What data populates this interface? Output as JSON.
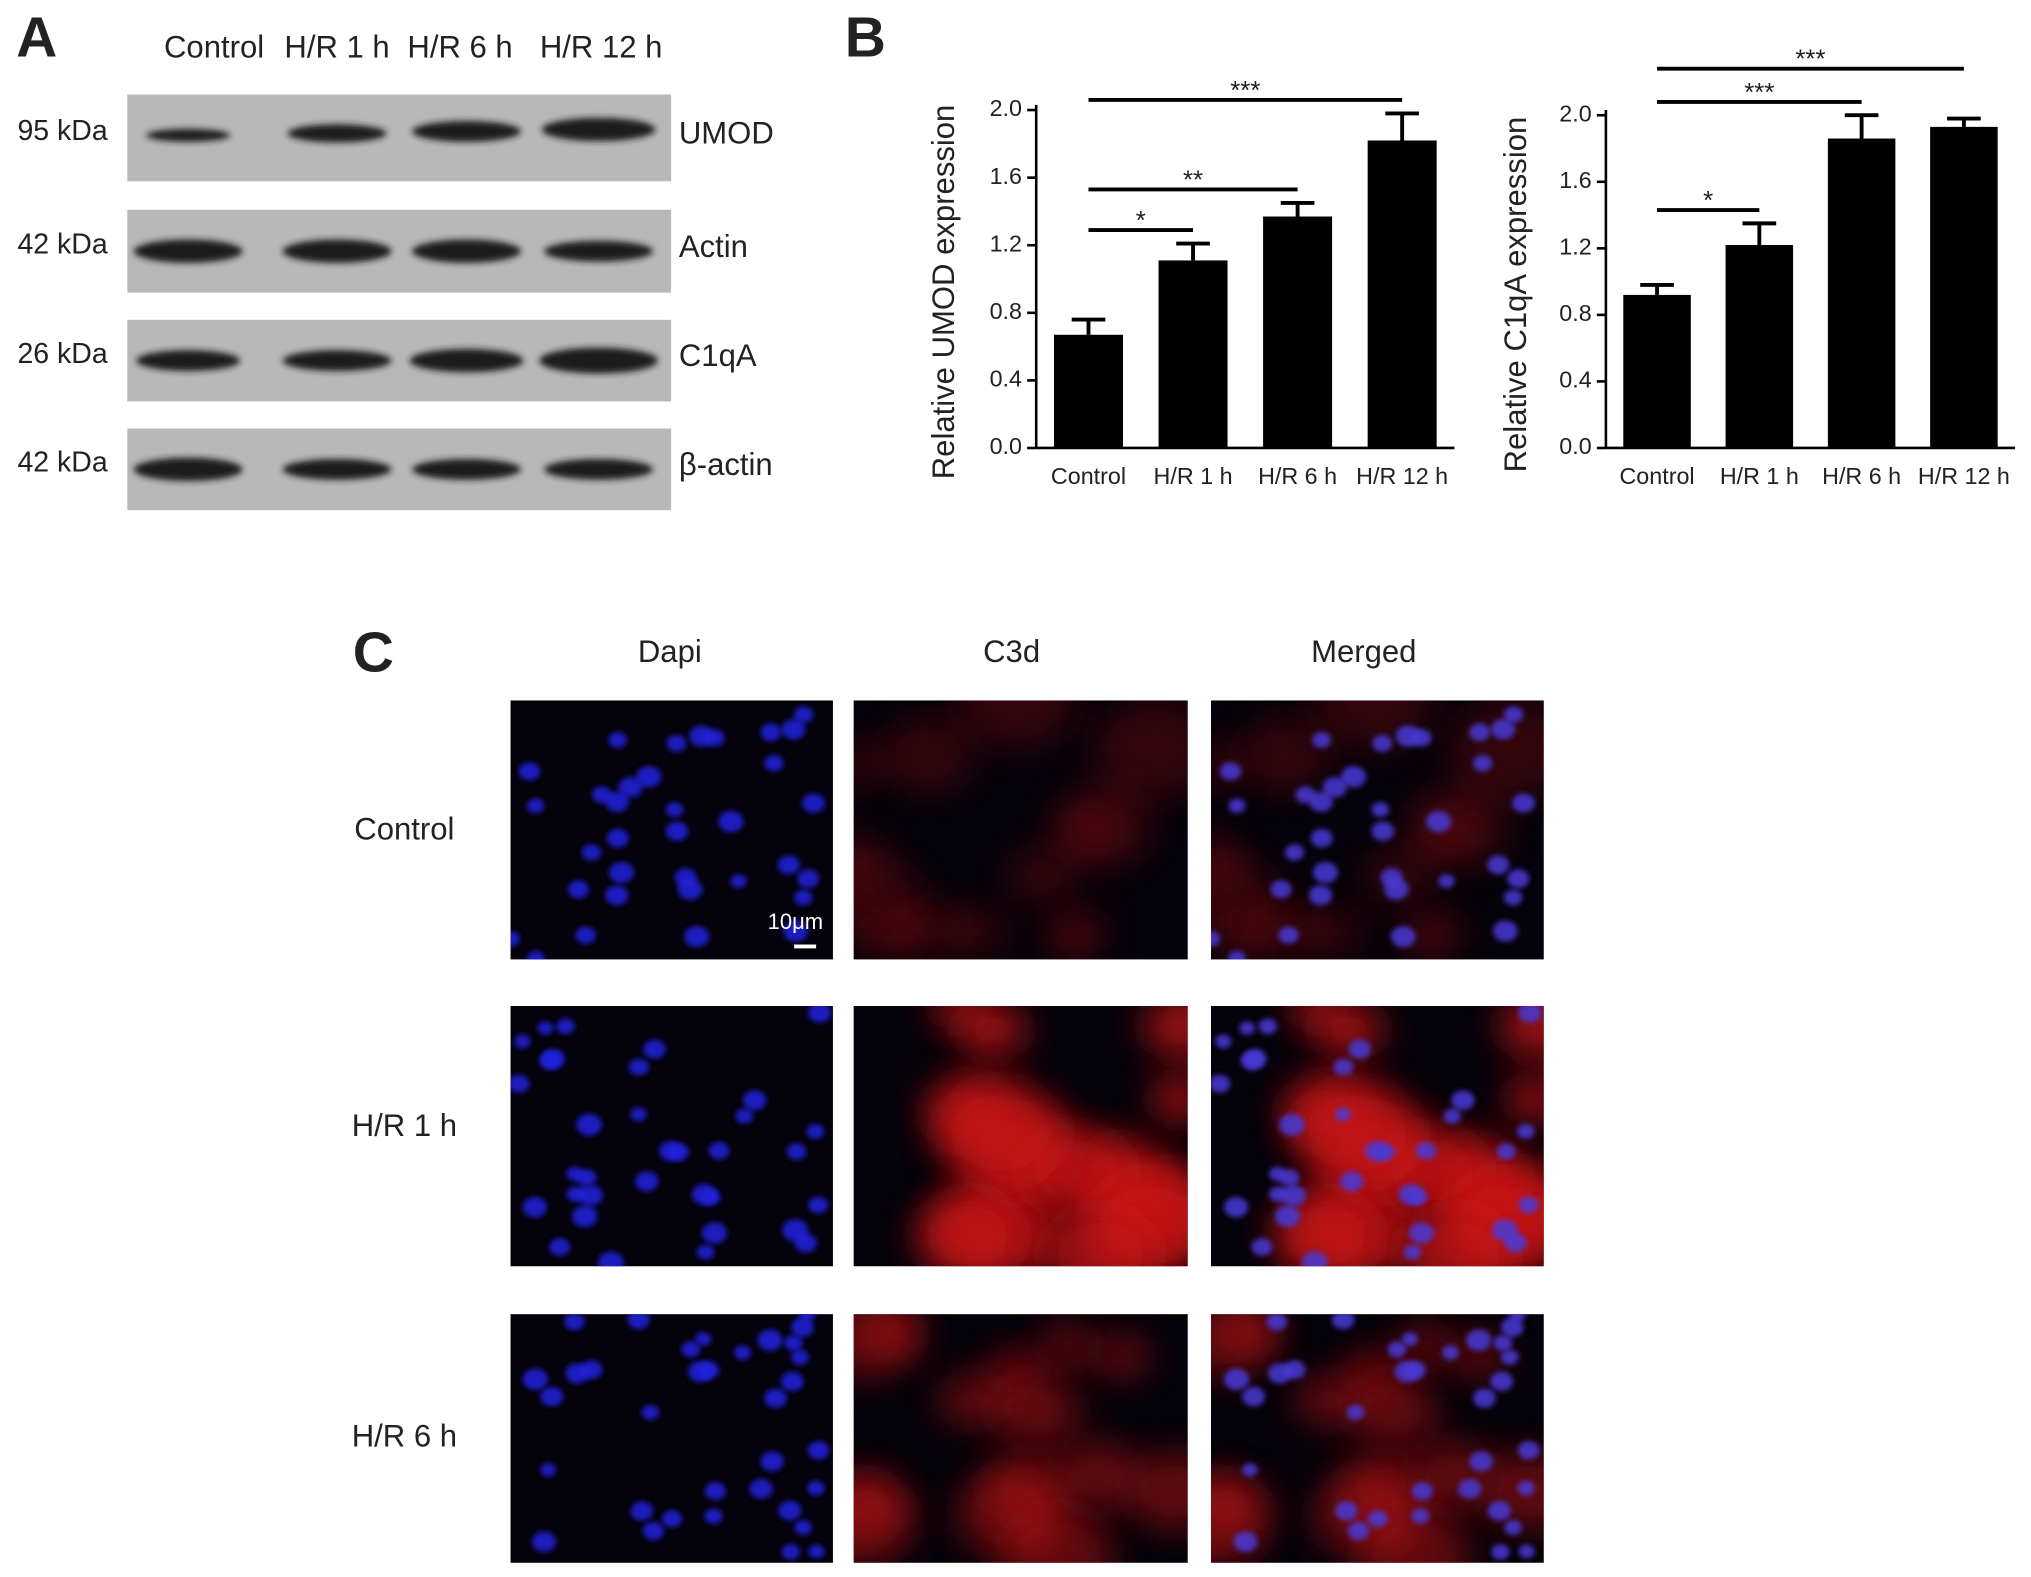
{
  "panel_labels": [
    "A",
    "B",
    "C"
  ],
  "blot": {
    "lanes": [
      "Control",
      "H/R 1 h",
      "H/R 6 h",
      "H/R 12 h"
    ],
    "rows": [
      {
        "mw": "95 kDa",
        "protein": "UMOD"
      },
      {
        "mw": "42 kDa",
        "protein": "Actin"
      },
      {
        "mw": "26 kDa",
        "protein": "C1qA"
      },
      {
        "mw": "42 kDa",
        "protein": "β-actin"
      }
    ]
  },
  "chart_data": [
    {
      "type": "bar",
      "ylabel": "Relative UMOD expression",
      "categories": [
        "Control",
        "H/R 1 h",
        "H/R 6 h",
        "H/R 12 h"
      ],
      "values": [
        0.67,
        1.11,
        1.37,
        1.82
      ],
      "errors": [
        0.09,
        0.1,
        0.08,
        0.16
      ],
      "color": "#000000",
      "ylim": [
        0,
        2
      ],
      "yticks": [
        {
          "value": 0,
          "label": "0.0"
        },
        0.4,
        0.8,
        1.2,
        1.6,
        {
          "value": 2,
          "label": "2.0"
        }
      ],
      "annotations": [
        {
          "text": "*",
          "from": "Control",
          "to": "H/R 1 h"
        },
        {
          "text": "**",
          "from": "Control",
          "to": "H/R 6 h"
        },
        {
          "text": "***",
          "from": "Control",
          "to": "H/R 12 h"
        }
      ]
    },
    {
      "type": "bar",
      "ylabel": "Relative C1qA  expression",
      "categories": [
        "Control",
        "H/R 1 h",
        "H/R 6 h",
        "H/R 12 h"
      ],
      "values": [
        0.92,
        1.22,
        1.86,
        1.93
      ],
      "errors": [
        0.06,
        0.13,
        0.14,
        0.05
      ],
      "color": "#000000",
      "ylim": [
        0,
        2
      ],
      "yticks": [
        {
          "value": 0,
          "label": "0.0"
        },
        0.4,
        0.8,
        1.2,
        1.6,
        {
          "value": 2,
          "label": "2.0"
        }
      ],
      "annotations": [
        {
          "text": "*",
          "from": "Control",
          "to": "H/R 1 h"
        },
        {
          "text": "***",
          "from": "Control",
          "to": "H/R 6 h"
        },
        {
          "text": "***",
          "from": "Control",
          "to": "H/R 12 h"
        }
      ]
    }
  ],
  "microscopy": {
    "columns": [
      "Dapi",
      "C3d",
      "Merged"
    ],
    "rows": [
      "Control",
      "H/R 1 h",
      "H/R 6 h"
    ],
    "scale_bar": "10μm"
  }
}
